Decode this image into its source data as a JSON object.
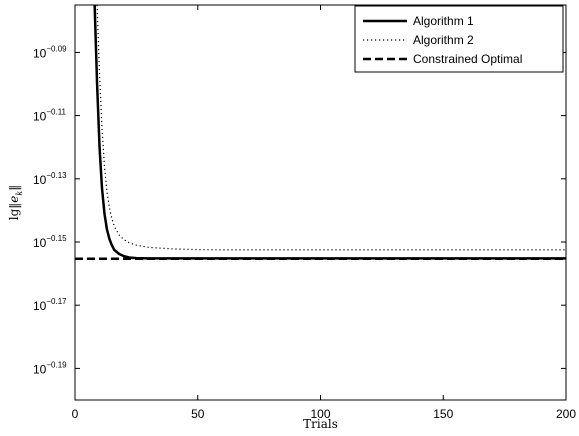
{
  "chart_data": {
    "type": "line",
    "xlabel": "Trials",
    "ylabel": "lg||e_k||",
    "xlim": [
      0,
      200
    ],
    "ylim_log10": [
      -0.2,
      -0.075
    ],
    "y_scale": "log",
    "grid": false,
    "legend_position": "top-right",
    "x_ticks": [
      "0",
      "50",
      "100",
      "150",
      "200"
    ],
    "y_ticks": [
      {
        "exp": -0.09,
        "base": "10",
        "power": "−0.09"
      },
      {
        "exp": -0.11,
        "base": "10",
        "power": "−0.11"
      },
      {
        "exp": -0.13,
        "base": "10",
        "power": "−0.13"
      },
      {
        "exp": -0.15,
        "base": "10",
        "power": "−0.15"
      },
      {
        "exp": -0.17,
        "base": "10",
        "power": "−0.17"
      },
      {
        "exp": -0.19,
        "base": "10",
        "power": "−0.19"
      }
    ],
    "series": [
      {
        "name": "Algorithm 1",
        "style": "solid",
        "x": [
          8,
          9,
          10,
          11,
          12,
          13,
          14,
          15,
          16,
          18,
          20,
          22,
          25,
          30,
          40,
          60,
          100,
          150,
          200
        ],
        "y_log10": [
          -0.075,
          -0.1,
          -0.12,
          -0.133,
          -0.141,
          -0.146,
          -0.149,
          -0.151,
          -0.1525,
          -0.1538,
          -0.1545,
          -0.1549,
          -0.1551,
          -0.1552,
          -0.1552,
          -0.1552,
          -0.1552,
          -0.1552,
          -0.1552
        ]
      },
      {
        "name": "Algorithm 2",
        "style": "dotted",
        "x": [
          9,
          10,
          11,
          12,
          13,
          14,
          15,
          16,
          18,
          20,
          22,
          25,
          30,
          40,
          50,
          60,
          100,
          150,
          200
        ],
        "y_log10": [
          -0.075,
          -0.097,
          -0.114,
          -0.126,
          -0.134,
          -0.139,
          -0.1425,
          -0.145,
          -0.1478,
          -0.1493,
          -0.1502,
          -0.151,
          -0.1517,
          -0.1522,
          -0.1524,
          -0.1525,
          -0.1525,
          -0.1525,
          -0.1525
        ]
      },
      {
        "name": "Constrained Optimal",
        "style": "dashed",
        "x": [
          0,
          200
        ],
        "y_log10": [
          -0.1553,
          -0.1553
        ]
      }
    ]
  },
  "colors": {
    "line": "#000000",
    "background": "#ffffff"
  }
}
